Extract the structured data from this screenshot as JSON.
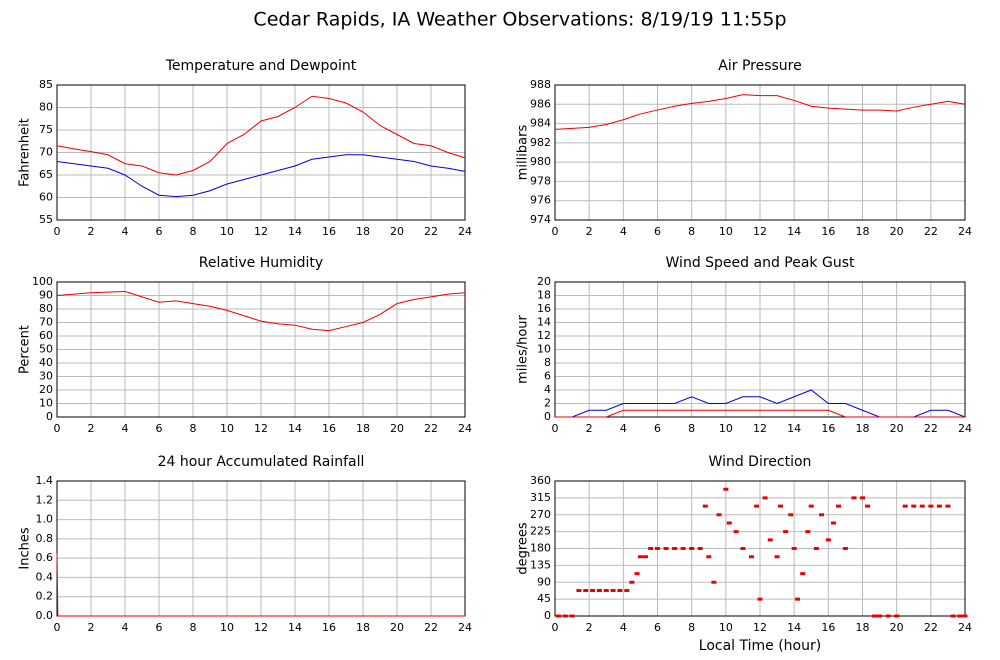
{
  "title": "Cedar Rapids, IA Weather Observations: 8/19/19 11:55p",
  "chart_data": [
    {
      "type": "line",
      "title": "Temperature and Dewpoint",
      "ylabel": "Fahrenheit",
      "x": [
        0,
        1,
        2,
        3,
        4,
        5,
        6,
        7,
        8,
        9,
        10,
        11,
        12,
        13,
        14,
        15,
        16,
        17,
        18,
        19,
        20,
        21,
        22,
        23,
        24
      ],
      "series": [
        {
          "color": "#ee0000",
          "values": [
            71.5,
            70.8,
            70.2,
            69.5,
            67.5,
            67,
            65.5,
            65,
            66,
            68,
            72,
            74,
            77,
            78,
            80,
            82.5,
            82,
            81,
            79,
            76,
            74,
            72,
            71.5,
            70,
            68.8
          ]
        },
        {
          "color": "#0000dd",
          "values": [
            68,
            67.5,
            67,
            66.5,
            65,
            62.5,
            60.5,
            60.2,
            60.5,
            61.5,
            63,
            64,
            65,
            66,
            67,
            68.5,
            69,
            69.5,
            69.5,
            69,
            68.5,
            68,
            67,
            66.5,
            65.8
          ]
        }
      ],
      "xlim": [
        0,
        24
      ],
      "xticks": [
        0,
        2,
        4,
        6,
        8,
        10,
        12,
        14,
        16,
        18,
        20,
        22,
        24
      ],
      "ylim": [
        55,
        85
      ],
      "yticks": [
        55,
        60,
        65,
        70,
        75,
        80,
        85
      ],
      "grid": true
    },
    {
      "type": "line",
      "title": "Air Pressure",
      "ylabel": "millibars",
      "x": [
        0,
        1,
        2,
        3,
        4,
        5,
        6,
        7,
        8,
        9,
        10,
        11,
        12,
        13,
        14,
        15,
        16,
        17,
        18,
        19,
        20,
        21,
        22,
        23,
        24
      ],
      "series": [
        {
          "color": "#ee0000",
          "values": [
            983.4,
            983.5,
            983.6,
            983.9,
            984.4,
            985,
            985.4,
            985.8,
            986.1,
            986.3,
            986.6,
            987,
            986.9,
            986.9,
            986.4,
            985.8,
            985.6,
            985.5,
            985.4,
            985.4,
            985.3,
            985.7,
            986,
            986.3,
            986
          ]
        }
      ],
      "xlim": [
        0,
        24
      ],
      "xticks": [
        0,
        2,
        4,
        6,
        8,
        10,
        12,
        14,
        16,
        18,
        20,
        22,
        24
      ],
      "ylim": [
        974,
        988
      ],
      "yticks": [
        974,
        976,
        978,
        980,
        982,
        984,
        986,
        988
      ],
      "grid": true
    },
    {
      "type": "line",
      "title": "Relative Humidity",
      "ylabel": "Percent",
      "x": [
        0,
        1,
        2,
        3,
        4,
        5,
        6,
        7,
        8,
        9,
        10,
        11,
        12,
        13,
        14,
        15,
        16,
        17,
        18,
        19,
        20,
        21,
        22,
        23,
        24
      ],
      "series": [
        {
          "color": "#ee0000",
          "values": [
            90,
            91,
            92,
            92.5,
            93,
            89,
            85,
            86,
            84,
            82,
            79,
            75,
            71,
            69,
            68,
            65,
            64,
            67,
            70,
            76,
            84,
            87,
            89,
            91,
            92
          ]
        }
      ],
      "xlim": [
        0,
        24
      ],
      "xticks": [
        0,
        2,
        4,
        6,
        8,
        10,
        12,
        14,
        16,
        18,
        20,
        22,
        24
      ],
      "ylim": [
        0,
        100
      ],
      "yticks": [
        0,
        10,
        20,
        30,
        40,
        50,
        60,
        70,
        80,
        90,
        100
      ],
      "grid": true
    },
    {
      "type": "line",
      "title": "Wind Speed and Peak Gust",
      "ylabel": "miles/hour",
      "x": [
        0,
        1,
        2,
        3,
        4,
        5,
        6,
        7,
        8,
        9,
        10,
        11,
        12,
        13,
        14,
        15,
        16,
        17,
        18,
        19,
        20,
        21,
        22,
        23,
        24
      ],
      "series": [
        {
          "color": "#0000dd",
          "values": [
            0,
            0,
            1,
            1,
            2,
            2,
            2,
            2,
            3,
            2,
            2,
            3,
            3,
            2,
            3,
            4,
            2,
            2,
            1,
            0,
            0,
            0,
            1,
            1,
            0
          ]
        },
        {
          "color": "#ee0000",
          "values": [
            0,
            0,
            0,
            0,
            1,
            1,
            1,
            1,
            1,
            1,
            1,
            1,
            1,
            1,
            1,
            1,
            1,
            0,
            0,
            0,
            0,
            0,
            0,
            0,
            0
          ]
        }
      ],
      "xlim": [
        0,
        24
      ],
      "xticks": [
        0,
        2,
        4,
        6,
        8,
        10,
        12,
        14,
        16,
        18,
        20,
        22,
        24
      ],
      "ylim": [
        0,
        20
      ],
      "yticks": [
        0,
        2,
        4,
        6,
        8,
        10,
        12,
        14,
        16,
        18,
        20
      ],
      "grid": true
    },
    {
      "type": "line",
      "title": "24 hour Accumulated Rainfall",
      "ylabel": "Inches",
      "x": [
        0,
        0.05,
        24
      ],
      "series": [
        {
          "color": "#ee0000",
          "values": [
            0.65,
            0,
            0
          ]
        }
      ],
      "xlim": [
        0,
        24
      ],
      "xticks": [
        0,
        2,
        4,
        6,
        8,
        10,
        12,
        14,
        16,
        18,
        20,
        22,
        24
      ],
      "ylim": [
        0,
        1.4
      ],
      "yticks": [
        {
          "value": 0,
          "label": "0.0"
        },
        0.2,
        0.4,
        0.6,
        0.8,
        {
          "value": 1,
          "label": "1.0"
        },
        1.2,
        1.4
      ],
      "grid": true
    },
    {
      "type": "scatter",
      "title": "Wind Direction",
      "ylabel": "degrees",
      "xlabel": "Local Time (hour)",
      "color": "#ee0000",
      "x": [
        0.2,
        0.6,
        1,
        1.4,
        1.8,
        2.2,
        2.6,
        3,
        3.4,
        3.8,
        4.2,
        4.5,
        4.8,
        5,
        5.3,
        5.6,
        6,
        6.5,
        7,
        7.5,
        8,
        8.5,
        8.8,
        9,
        9.3,
        9.6,
        10,
        10.2,
        10.6,
        11,
        11.5,
        11.8,
        12,
        12.3,
        12.6,
        13,
        13.2,
        13.5,
        13.8,
        14,
        14.2,
        14.5,
        14.8,
        15,
        15.3,
        15.6,
        16,
        16.3,
        16.6,
        17,
        17.5,
        18,
        18.3,
        18.7,
        19,
        19.5,
        20,
        20.5,
        21,
        21.5,
        22,
        22.5,
        23,
        23.3,
        23.7,
        24
      ],
      "values": [
        0,
        0,
        0,
        68,
        68,
        68,
        68,
        68,
        68,
        68,
        68,
        90,
        113,
        158,
        158,
        180,
        180,
        180,
        180,
        180,
        180,
        180,
        293,
        158,
        90,
        270,
        338,
        248,
        225,
        180,
        158,
        293,
        45,
        315,
        203,
        158,
        293,
        225,
        270,
        180,
        45,
        113,
        225,
        293,
        180,
        270,
        203,
        248,
        293,
        180,
        315,
        315,
        293,
        0,
        0,
        0,
        0,
        293,
        293,
        293,
        293,
        293,
        293,
        0,
        0,
        0
      ],
      "xlim": [
        0,
        24
      ],
      "xticks": [
        0,
        2,
        4,
        6,
        8,
        10,
        12,
        14,
        16,
        18,
        20,
        22,
        24
      ],
      "ylim": [
        0,
        360
      ],
      "yticks": [
        0,
        45,
        90,
        135,
        180,
        225,
        270,
        315,
        360
      ],
      "grid": true
    }
  ]
}
